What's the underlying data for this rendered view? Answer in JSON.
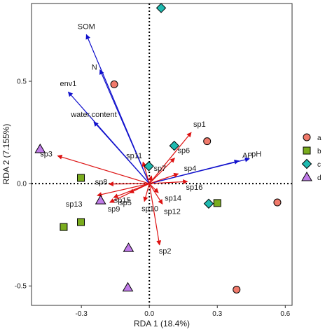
{
  "chart_data": {
    "type": "scatter",
    "xlabel": "RDA 1 (18.4%)",
    "ylabel": "RDA 2 (7.155%)",
    "xlim": [
      -0.52,
      0.63
    ],
    "ylim": [
      -0.595,
      0.88
    ],
    "x_ticks": [
      -0.3,
      0.0,
      0.3,
      0.6
    ],
    "x_tick_labels": [
      "-0.3",
      "0.0",
      "0.3",
      "0.6"
    ],
    "y_ticks": [
      -0.5,
      0.0,
      0.5
    ],
    "y_tick_labels": [
      "-0.5",
      "0.0",
      "0.5"
    ],
    "grid": false,
    "reference_lines": "dotted lines at x = 0 and y = 0",
    "legend": {
      "placement": "right",
      "entries": [
        {
          "label": "a",
          "shape": "circle",
          "color": "#f07a6b"
        },
        {
          "label": "b",
          "shape": "square",
          "color": "#7aac1e"
        },
        {
          "label": "c",
          "shape": "diamond",
          "color": "#1fbab0"
        },
        {
          "label": "d",
          "shape": "triangle",
          "color": "#c07be8"
        }
      ]
    },
    "env_arrows": {
      "color": "#1010cc",
      "items": [
        {
          "label": "SOM",
          "x": -0.278,
          "y": 0.728
        },
        {
          "label": "N",
          "x": -0.218,
          "y": 0.556
        },
        {
          "label": "env1",
          "x": -0.358,
          "y": 0.448
        },
        {
          "label": "water.content",
          "x": -0.245,
          "y": 0.302
        },
        {
          "label": "AP",
          "x": 0.395,
          "y": 0.111
        },
        {
          "label": "pH",
          "x": 0.442,
          "y": 0.122
        }
      ]
    },
    "species_arrows": {
      "color": "#dd1111",
      "items": [
        {
          "label": "sp1",
          "x": 0.185,
          "y": 0.25
        },
        {
          "label": "sp2",
          "x": 0.045,
          "y": -0.3
        },
        {
          "label": "sp3",
          "x": -0.405,
          "y": 0.136
        },
        {
          "label": "sp4",
          "x": 0.128,
          "y": 0.048
        },
        {
          "label": "sp5",
          "x": -0.158,
          "y": -0.068
        },
        {
          "label": "sp6",
          "x": 0.112,
          "y": 0.125
        },
        {
          "label": "sp7",
          "x": 0.01,
          "y": 0.038
        },
        {
          "label": "sp8",
          "x": -0.178,
          "y": -0.002
        },
        {
          "label": "sp9",
          "x": -0.175,
          "y": -0.092
        },
        {
          "label": "sp10",
          "x": -0.022,
          "y": -0.087
        },
        {
          "label": "sp11",
          "x": -0.028,
          "y": 0.106
        },
        {
          "label": "sp12",
          "x": 0.058,
          "y": -0.1
        },
        {
          "label": "sp13",
          "x": -0.23,
          "y": -0.058
        },
        {
          "label": "sp14",
          "x": 0.04,
          "y": -0.045
        },
        {
          "label": "sp15",
          "x": -0.088,
          "y": -0.045
        },
        {
          "label": "sp16",
          "x": 0.168,
          "y": 0.01
        }
      ]
    },
    "site_points": [
      {
        "group": "a",
        "x": -0.155,
        "y": 0.485
      },
      {
        "group": "a",
        "x": 0.255,
        "y": 0.207
      },
      {
        "group": "a",
        "x": 0.565,
        "y": -0.092
      },
      {
        "group": "a",
        "x": 0.385,
        "y": -0.518
      },
      {
        "group": "b",
        "x": -0.302,
        "y": 0.028
      },
      {
        "group": "b",
        "x": -0.378,
        "y": -0.212
      },
      {
        "group": "b",
        "x": -0.302,
        "y": -0.188
      },
      {
        "group": "b",
        "x": 0.3,
        "y": -0.095
      },
      {
        "group": "c",
        "x": 0.052,
        "y": 0.858
      },
      {
        "group": "c",
        "x": 0.11,
        "y": 0.185
      },
      {
        "group": "c",
        "x": -0.002,
        "y": 0.085
      },
      {
        "group": "c",
        "x": 0.262,
        "y": -0.098
      },
      {
        "group": "d",
        "x": -0.482,
        "y": 0.168
      },
      {
        "group": "d",
        "x": -0.215,
        "y": -0.082
      },
      {
        "group": "d",
        "x": -0.092,
        "y": -0.315
      },
      {
        "group": "d",
        "x": -0.095,
        "y": -0.508
      }
    ]
  }
}
